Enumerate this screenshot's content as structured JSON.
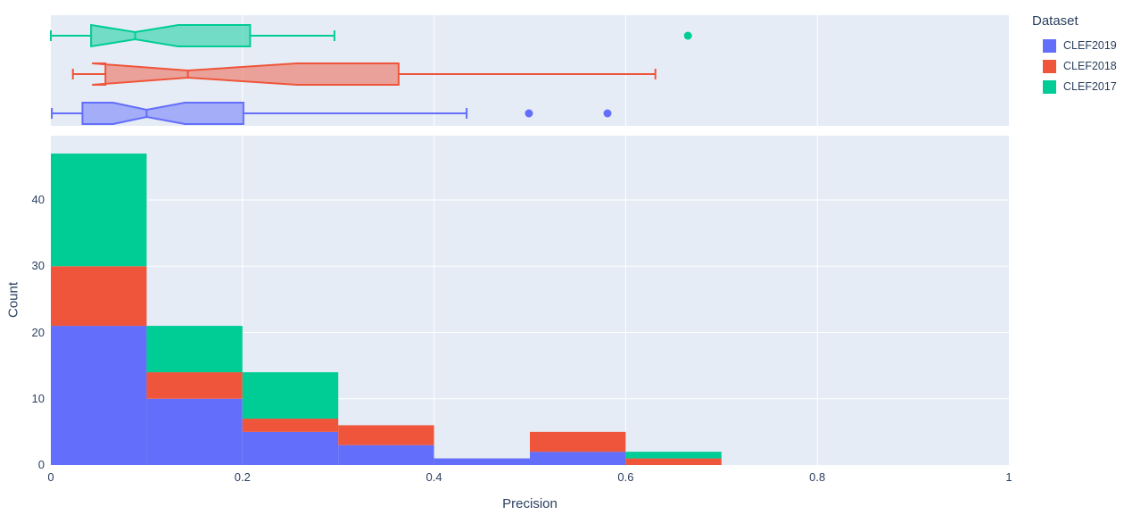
{
  "colors": {
    "background": "#ffffff",
    "panel": "#e5ecf6",
    "grid": "#ffffff",
    "text": "#2a3f5f",
    "clef2019": "#636efa",
    "clef2018": "#ef553b",
    "clef2017": "#00cc96"
  },
  "xaxis": {
    "title": "Precision",
    "range": [
      0,
      1
    ],
    "tick_values": [
      0,
      0.2,
      0.4,
      0.6,
      0.8,
      1
    ],
    "tick_labels": [
      "0",
      "0.2",
      "0.4",
      "0.6",
      "0.8",
      "1"
    ]
  },
  "yaxis": {
    "title": "Count",
    "range": [
      0,
      49.7
    ],
    "tick_values": [
      0,
      10,
      20,
      30,
      40
    ],
    "tick_labels": [
      "0",
      "10",
      "20",
      "30",
      "40"
    ]
  },
  "legend": {
    "title": "Dataset",
    "items": [
      {
        "label": "CLEF2019",
        "color": "#636efa"
      },
      {
        "label": "CLEF2018",
        "color": "#ef553b"
      },
      {
        "label": "CLEF2017",
        "color": "#00cc96"
      }
    ]
  },
  "chart_data": [
    {
      "type": "box",
      "orientation": "horizontal",
      "notched": true,
      "x_range": [
        0,
        1
      ],
      "series": [
        {
          "name": "CLEF2017",
          "color": "#00cc96",
          "row": 0,
          "min": 0.0,
          "q1": 0.042,
          "median": 0.088,
          "q3": 0.208,
          "max": 0.296,
          "notch": [
            0.042,
            0.133
          ],
          "outliers": [
            0.665
          ]
        },
        {
          "name": "CLEF2018",
          "color": "#ef553b",
          "row": 1,
          "min": 0.023,
          "q1": 0.057,
          "median": 0.143,
          "q3": 0.363,
          "max": 0.631,
          "notch": [
            0.043,
            0.257
          ],
          "outliers": []
        },
        {
          "name": "CLEF2019",
          "color": "#636efa",
          "row": 2,
          "min": 0.001,
          "q1": 0.033,
          "median": 0.1,
          "q3": 0.201,
          "max": 0.434,
          "notch": [
            0.065,
            0.14
          ],
          "outliers": [
            0.499,
            0.581
          ]
        }
      ]
    },
    {
      "type": "histogram",
      "stacked": true,
      "xlabel": "Precision",
      "ylabel": "Count",
      "bin_edges": [
        0,
        0.1,
        0.2,
        0.3,
        0.4,
        0.5,
        0.6,
        0.7
      ],
      "stack_order_bottom_to_top": [
        "CLEF2019",
        "CLEF2018",
        "CLEF2017"
      ],
      "series": [
        {
          "name": "CLEF2019",
          "color": "#636efa",
          "values": [
            21,
            10,
            5,
            3,
            1,
            2,
            0
          ]
        },
        {
          "name": "CLEF2018",
          "color": "#ef553b",
          "values": [
            9,
            4,
            2,
            3,
            0,
            3,
            1
          ]
        },
        {
          "name": "CLEF2017",
          "color": "#00cc96",
          "values": [
            17,
            7,
            7,
            0,
            0,
            0,
            1
          ]
        }
      ],
      "totals_per_bin": [
        47,
        21,
        14,
        6,
        1,
        5,
        2
      ],
      "ylim": [
        0,
        49.7
      ]
    }
  ]
}
